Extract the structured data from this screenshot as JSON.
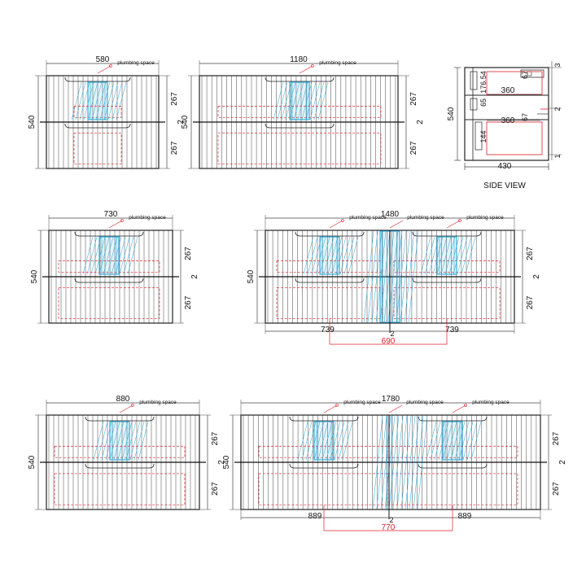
{
  "labels": {
    "plumbing": "plumbing space",
    "side_view": "SIDE VIEW"
  },
  "units": {
    "u580": {
      "width": "580",
      "height": "540",
      "top": "267",
      "bottom": "267",
      "gap": "2"
    },
    "u1180": {
      "width": "1180",
      "height": "540",
      "top": "267",
      "bottom": "267",
      "gap": "2"
    },
    "u730": {
      "width": "730",
      "height": "540",
      "top": "267",
      "bottom": "267",
      "gap": "2"
    },
    "u1480": {
      "width": "1480",
      "height": "540",
      "top": "267",
      "bottom": "267",
      "gap": "2",
      "left_half": "739",
      "right_half": "739",
      "mid_gap": "2",
      "centers": "690"
    },
    "u880": {
      "width": "880",
      "height": "540",
      "top": "267",
      "bottom": "267",
      "gap": "2"
    },
    "u1780": {
      "width": "1780",
      "height": "540",
      "top": "267",
      "bottom": "267",
      "gap": "2",
      "left_half": "889",
      "right_half": "889",
      "mid_gap": "2",
      "centers": "770"
    }
  },
  "side": {
    "height": "540",
    "depth": "430",
    "d1": "176.54",
    "d2": "67",
    "d3": "360",
    "d4": "65",
    "d5": "67",
    "d6": "360",
    "d7": "144",
    "g1": "3",
    "g2": "2",
    "g3": "1"
  },
  "colors": {
    "line": "#222222",
    "dim": "#444444",
    "red": "#e0202a",
    "blue": "#2aa6d6"
  }
}
